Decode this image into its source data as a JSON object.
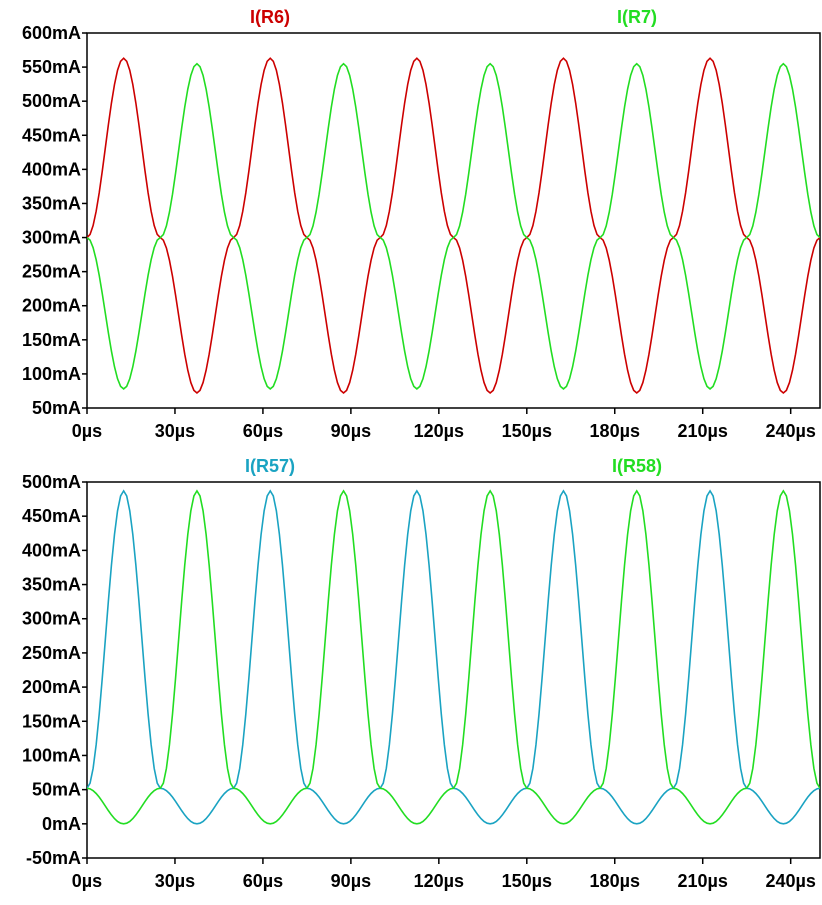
{
  "chart_data": [
    {
      "type": "line",
      "title": "",
      "x_unit": "µs",
      "y_unit": "mA",
      "xlim": [
        0,
        250
      ],
      "ylim": [
        50,
        600
      ],
      "x_ticks": [
        0,
        30,
        60,
        90,
        120,
        150,
        180,
        210,
        240
      ],
      "x_tick_labels": [
        "0µs",
        "30µs",
        "60µs",
        "90µs",
        "120µs",
        "150µs",
        "180µs",
        "210µs",
        "240µs"
      ],
      "y_ticks": [
        50,
        100,
        150,
        200,
        250,
        300,
        350,
        400,
        450,
        500,
        550,
        600
      ],
      "y_tick_labels": [
        "50mA",
        "100mA",
        "150mA",
        "200mA",
        "250mA",
        "300mA",
        "350mA",
        "400mA",
        "450mA",
        "500mA",
        "550mA",
        "600mA"
      ],
      "grid": false,
      "legend": "top",
      "series": [
        {
          "name": "I(R6)",
          "color": "#cc0000",
          "x": [
            0,
            12.5,
            25,
            37.5,
            50,
            62.5,
            75,
            87.5,
            100,
            112.5,
            125,
            137.5,
            150,
            162.5,
            175,
            187.5,
            200,
            212.5,
            225,
            237.5,
            250
          ],
          "values": [
            300,
            563,
            300,
            72,
            300,
            563,
            300,
            72,
            300,
            563,
            300,
            72,
            300,
            563,
            300,
            72,
            300,
            563,
            300,
            72,
            300
          ]
        },
        {
          "name": "I(R7)",
          "color": "#22dd22",
          "x": [
            0,
            12.5,
            25,
            37.5,
            50,
            62.5,
            75,
            87.5,
            100,
            112.5,
            125,
            137.5,
            150,
            162.5,
            175,
            187.5,
            200,
            212.5,
            225,
            237.5,
            250
          ],
          "values": [
            300,
            78,
            300,
            555,
            300,
            78,
            300,
            555,
            300,
            78,
            300,
            555,
            300,
            78,
            300,
            555,
            300,
            78,
            300,
            555,
            300
          ]
        }
      ]
    },
    {
      "type": "line",
      "title": "",
      "x_unit": "µs",
      "y_unit": "mA",
      "xlim": [
        0,
        250
      ],
      "ylim": [
        -50,
        500
      ],
      "x_ticks": [
        0,
        30,
        60,
        90,
        120,
        150,
        180,
        210,
        240
      ],
      "x_tick_labels": [
        "0µs",
        "30µs",
        "60µs",
        "90µs",
        "120µs",
        "150µs",
        "180µs",
        "210µs",
        "240µs"
      ],
      "y_ticks": [
        -50,
        0,
        50,
        100,
        150,
        200,
        250,
        300,
        350,
        400,
        450,
        500
      ],
      "y_tick_labels": [
        "-50mA",
        "0mA",
        "50mA",
        "100mA",
        "150mA",
        "200mA",
        "250mA",
        "300mA",
        "350mA",
        "400mA",
        "450mA",
        "500mA"
      ],
      "grid": false,
      "legend": "top",
      "series": [
        {
          "name": "I(R57)",
          "color": "#1aa3c2",
          "x": [
            0,
            12.5,
            25,
            37.5,
            50,
            62.5,
            75,
            87.5,
            100,
            112.5,
            125,
            137.5,
            150,
            162.5,
            175,
            187.5,
            200,
            212.5,
            225,
            237.5,
            250
          ],
          "values": [
            52,
            487,
            52,
            0,
            52,
            487,
            52,
            0,
            52,
            487,
            52,
            0,
            52,
            487,
            52,
            0,
            52,
            487,
            52,
            0,
            52
          ]
        },
        {
          "name": "I(R58)",
          "color": "#22dd22",
          "x": [
            0,
            12.5,
            25,
            37.5,
            50,
            62.5,
            75,
            87.5,
            100,
            112.5,
            125,
            137.5,
            150,
            162.5,
            175,
            187.5,
            200,
            212.5,
            225,
            237.5,
            250
          ],
          "values": [
            52,
            0,
            52,
            487,
            52,
            0,
            52,
            487,
            52,
            0,
            52,
            487,
            52,
            0,
            52,
            487,
            52,
            0,
            52,
            487,
            52
          ]
        }
      ]
    }
  ]
}
